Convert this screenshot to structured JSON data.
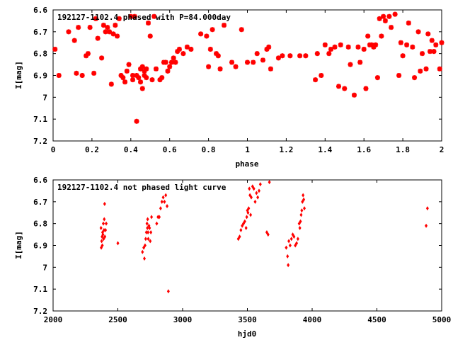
{
  "chart_data": [
    {
      "type": "scatter",
      "title": "192127-1102.4 phased with P=84.000day",
      "xlabel": "phase",
      "ylabel": "I[mag]",
      "xlim": [
        0,
        2
      ],
      "ylim": [
        7.2,
        6.6
      ],
      "y_inverted": true,
      "x_ticks": [
        "0",
        "0.2",
        "0.4",
        "0.6",
        "0.8",
        "1",
        "1.2",
        "1.4",
        "1.6",
        "1.8",
        "2"
      ],
      "y_ticks": [
        "6.6",
        "6.7",
        "6.8",
        "6.9",
        "7",
        "7.1",
        "7.2"
      ],
      "grid": false,
      "color": "#ff0000",
      "marker": "star",
      "series": [
        {
          "x": [
            0.01,
            0.03,
            0.08,
            0.11,
            0.12,
            0.13,
            0.15,
            0.17,
            0.18,
            0.19,
            0.21,
            0.22,
            0.23,
            0.25,
            0.26,
            0.27,
            0.28,
            0.29,
            0.3,
            0.31,
            0.32,
            0.33,
            0.34,
            0.35,
            0.36,
            0.37,
            0.38,
            0.39,
            0.4,
            0.41,
            0.41,
            0.42,
            0.43,
            0.43,
            0.44,
            0.45,
            0.45,
            0.46,
            0.46,
            0.47,
            0.47,
            0.48,
            0.48,
            0.49,
            0.5,
            0.51,
            0.52,
            0.53,
            0.55,
            0.56,
            0.57,
            0.58,
            0.59,
            0.6,
            0.61,
            0.62,
            0.63,
            0.64,
            0.65,
            0.67,
            0.69,
            0.71,
            0.76,
            0.79,
            0.8,
            0.81,
            0.82,
            0.84,
            0.85,
            0.86,
            0.88,
            0.92,
            0.94,
            0.97,
            1.0,
            1.03,
            1.05,
            1.08,
            1.1,
            1.11,
            1.12,
            1.16,
            1.18,
            1.22,
            1.27,
            1.3,
            1.35,
            1.36,
            1.38,
            1.4,
            1.42,
            1.43,
            1.45,
            1.47,
            1.48,
            1.5,
            1.52,
            1.53,
            1.55,
            1.57,
            1.58,
            1.6,
            1.61,
            1.62,
            1.63,
            1.64,
            1.65,
            1.66,
            1.67,
            1.68,
            1.69,
            1.7,
            1.71,
            1.73,
            1.74,
            1.76,
            1.78,
            1.79,
            1.8,
            1.82,
            1.83,
            1.85,
            1.86,
            1.88,
            1.89,
            1.9,
            1.92,
            1.93,
            1.94,
            1.95,
            1.96,
            1.97,
            1.99,
            2.0
          ],
          "y": [
            6.78,
            6.9,
            6.7,
            6.74,
            6.89,
            6.68,
            6.9,
            6.81,
            6.8,
            6.68,
            6.89,
            6.64,
            6.73,
            6.82,
            6.67,
            6.7,
            6.68,
            6.7,
            6.94,
            6.71,
            6.67,
            6.72,
            6.64,
            6.9,
            6.91,
            6.93,
            6.88,
            6.85,
            6.63,
            6.92,
            6.9,
            6.63,
            7.11,
            6.9,
            6.91,
            6.87,
            6.93,
            6.86,
            6.96,
            6.88,
            6.9,
            6.87,
            6.91,
            6.66,
            6.72,
            6.92,
            6.63,
            6.87,
            6.92,
            6.91,
            6.84,
            6.84,
            6.88,
            6.86,
            6.84,
            6.82,
            6.84,
            6.79,
            6.78,
            6.8,
            6.77,
            6.78,
            6.71,
            6.72,
            6.86,
            6.78,
            6.69,
            6.8,
            6.81,
            6.87,
            6.67,
            6.84,
            6.86,
            6.69,
            6.84,
            6.84,
            6.8,
            6.83,
            6.78,
            6.77,
            6.87,
            6.82,
            6.81,
            6.81,
            6.81,
            6.81,
            6.92,
            6.8,
            6.9,
            6.76,
            6.8,
            6.78,
            6.77,
            6.95,
            6.76,
            6.96,
            6.77,
            6.85,
            6.99,
            6.77,
            6.84,
            6.78,
            6.96,
            6.72,
            6.76,
            6.76,
            6.77,
            6.76,
            6.91,
            6.64,
            6.72,
            6.63,
            6.65,
            6.63,
            6.68,
            6.62,
            6.9,
            6.75,
            6.81,
            6.76,
            6.66,
            6.77,
            6.91,
            6.7,
            6.88,
            6.8,
            6.87,
            6.71,
            6.79,
            6.74,
            6.79,
            6.76,
            6.87,
            6.75
          ]
        }
      ]
    },
    {
      "type": "scatter",
      "title": "192127-1102.4 not phased light curve",
      "xlabel": "hjd0",
      "ylabel": "I[mag]",
      "xlim": [
        2000,
        5000
      ],
      "ylim": [
        7.2,
        6.6
      ],
      "y_inverted": true,
      "x_ticks": [
        "2000",
        "2500",
        "3000",
        "3500",
        "4000",
        "4500",
        "5000"
      ],
      "y_ticks": [
        "6.6",
        "6.7",
        "6.8",
        "6.9",
        "7",
        "7.1",
        "7.2"
      ],
      "grid": false,
      "color": "#ff0000",
      "marker": "diamond",
      "series": [
        {
          "x": [
            2370,
            2372,
            2375,
            2378,
            2380,
            2382,
            2385,
            2388,
            2390,
            2393,
            2395,
            2398,
            2400,
            2405,
            2410,
            2500,
            2690,
            2700,
            2705,
            2710,
            2715,
            2720,
            2725,
            2728,
            2730,
            2733,
            2735,
            2740,
            2745,
            2750,
            2755,
            2760,
            2800,
            2810,
            2820,
            2830,
            2840,
            2850,
            2860,
            2870,
            2880,
            2890,
            3430,
            3440,
            3450,
            3460,
            3470,
            3480,
            3490,
            3495,
            3500,
            3505,
            3510,
            3515,
            3520,
            3525,
            3530,
            3540,
            3550,
            3560,
            3570,
            3580,
            3590,
            3600,
            3650,
            3660,
            3670,
            3800,
            3810,
            3815,
            3820,
            3830,
            3840,
            3850,
            3860,
            3870,
            3880,
            3890,
            3900,
            3905,
            3910,
            3915,
            3920,
            3925,
            3930,
            3935,
            3940,
            4880,
            4890
          ],
          "y": [
            6.82,
            6.91,
            6.88,
            6.86,
            6.9,
            6.84,
            6.85,
            6.8,
            6.87,
            6.83,
            6.78,
            6.71,
            6.86,
            6.83,
            6.8,
            6.89,
            6.93,
            6.91,
            6.96,
            6.9,
            6.87,
            6.84,
            6.8,
            6.82,
            6.78,
            6.84,
            6.87,
            6.81,
            6.82,
            6.88,
            6.84,
            6.77,
            6.8,
            6.77,
            6.77,
            6.73,
            6.7,
            6.68,
            6.7,
            6.67,
            6.72,
            7.11,
            6.87,
            6.86,
            6.83,
            6.81,
            6.8,
            6.79,
            6.82,
            6.77,
            6.74,
            6.75,
            6.73,
            6.64,
            6.67,
            6.76,
            6.68,
            6.63,
            6.64,
            6.7,
            6.66,
            6.68,
            6.65,
            6.62,
            6.84,
            6.85,
            6.61,
            6.91,
            6.95,
            6.99,
            6.88,
            6.9,
            6.87,
            6.85,
            6.86,
            6.9,
            6.89,
            6.87,
            6.8,
            6.82,
            6.79,
            6.76,
            6.74,
            6.7,
            6.67,
            6.69,
            6.73,
            6.81,
            6.73
          ]
        }
      ]
    }
  ]
}
